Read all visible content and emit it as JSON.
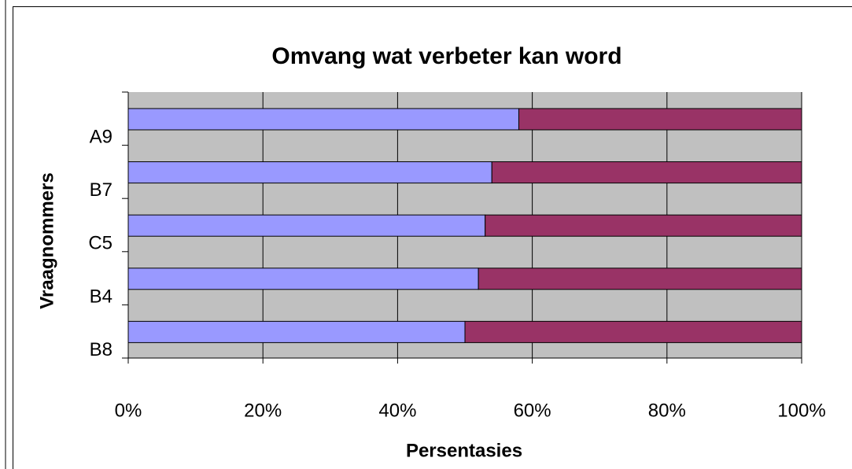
{
  "chart_data": {
    "type": "stacked_hbar",
    "title": "Omvang wat verbeter kan word",
    "x_label": "Persentasies",
    "y_label": "Vraagnommers",
    "categories": [
      "A9",
      "B7",
      "C5",
      "B4",
      "B8"
    ],
    "series": [
      {
        "color": "#9999ff",
        "values": [
          58,
          54,
          53,
          52,
          50
        ]
      },
      {
        "color": "#993366",
        "values": [
          42,
          46,
          47,
          48,
          50
        ]
      }
    ],
    "xlim": [
      0,
      100
    ],
    "xticks": [
      {
        "value": 0,
        "label": "0%"
      },
      {
        "value": 20,
        "label": "20%"
      },
      {
        "value": 40,
        "label": "40%"
      },
      {
        "value": 60,
        "label": "60%"
      },
      {
        "value": 80,
        "label": "80%"
      },
      {
        "value": 100,
        "label": "100%"
      }
    ],
    "grid": true,
    "plot_background": "#c0c0c0"
  }
}
